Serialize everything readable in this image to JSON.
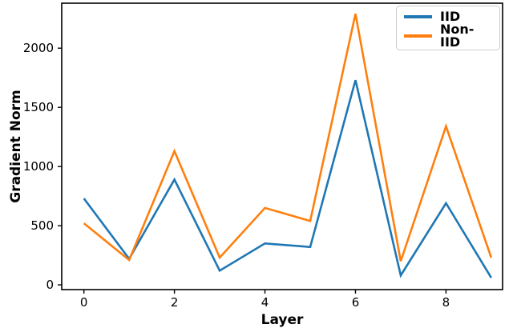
{
  "figure": {
    "background": "#ffffff",
    "axis_color": "#000000"
  },
  "chart_data": {
    "type": "line",
    "title": "",
    "xlabel": "Layer",
    "ylabel": "Gradient Norm",
    "x": [
      0,
      1,
      2,
      3,
      4,
      5,
      6,
      7,
      8,
      9
    ],
    "series": [
      {
        "name": "IID",
        "color": "#1f77b4",
        "values": [
          730,
          220,
          890,
          120,
          350,
          320,
          1730,
          80,
          690,
          60
        ]
      },
      {
        "name": "Non-IID",
        "color": "#ff7f0e",
        "values": [
          520,
          210,
          1130,
          230,
          650,
          540,
          2290,
          200,
          1340,
          230
        ]
      }
    ],
    "xticks": [
      0,
      2,
      4,
      6,
      8
    ],
    "yticks": [
      0,
      500,
      1000,
      1500,
      2000
    ],
    "xlim": [
      -0.49,
      9.25
    ],
    "ylim": [
      -40,
      2380
    ],
    "grid": false,
    "legend_position": "upper right",
    "line_width": 2.6
  }
}
